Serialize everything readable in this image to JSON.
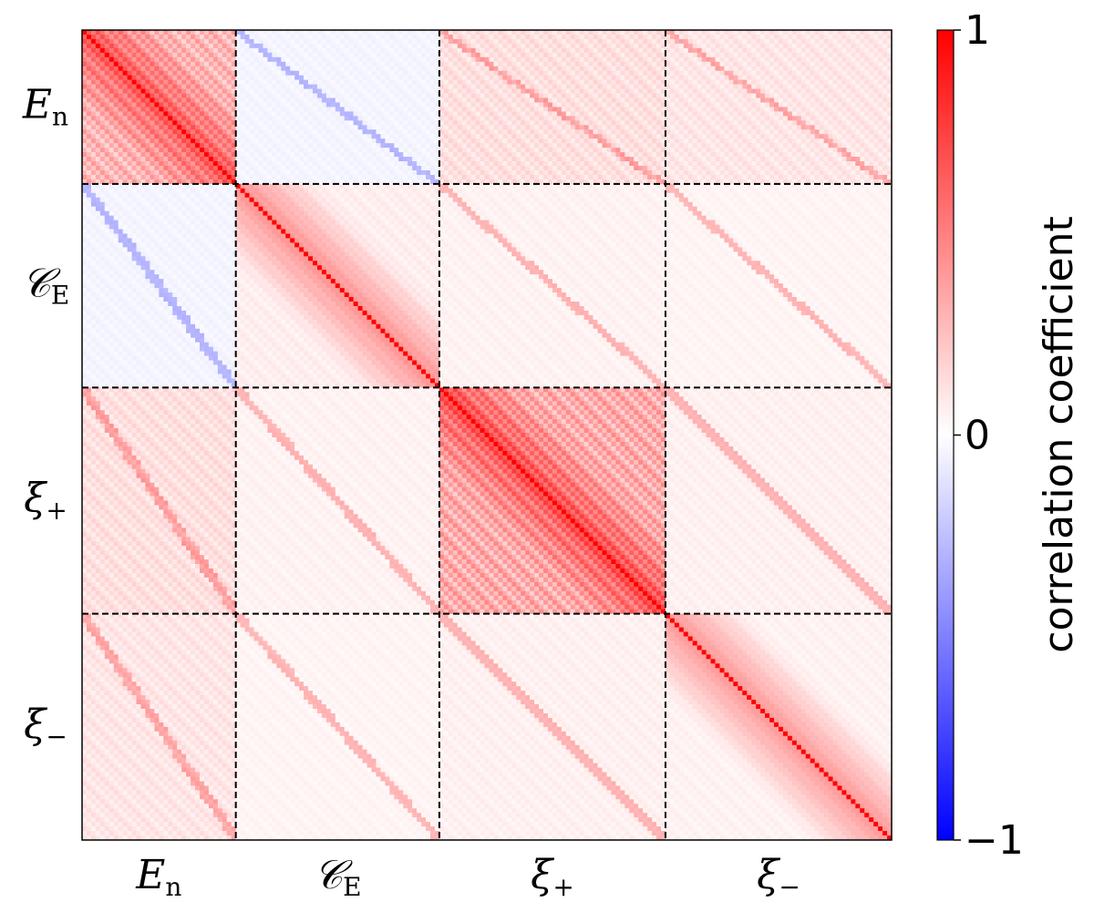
{
  "chart_data": {
    "type": "heatmap",
    "title": "",
    "blocks": [
      {
        "name": "E",
        "sub": "n",
        "size": 34
      },
      {
        "name": "𝒞",
        "sub": "E",
        "size": 45
      },
      {
        "name": "ξ",
        "sub": "+",
        "size": 50
      },
      {
        "name": "ξ",
        "sub": "−",
        "size": 50
      }
    ],
    "block_correlation": [
      [
        0.35,
        -0.05,
        0.15,
        0.12
      ],
      [
        -0.05,
        0.08,
        0.06,
        0.05
      ],
      [
        0.15,
        0.06,
        0.4,
        0.07
      ],
      [
        0.12,
        0.05,
        0.07,
        0.06
      ]
    ],
    "diagonal_value": 1.0,
    "colorbar": {
      "label": "correlation coefficient",
      "min": -1,
      "max": 1,
      "ticks": [
        {
          "value": 1,
          "label": "1"
        },
        {
          "value": 0,
          "label": "0"
        },
        {
          "value": -1,
          "label": "−1"
        }
      ],
      "colormap": "bwr",
      "colors": {
        "low": "#0000ff",
        "mid": "#ffffff",
        "high": "#ff0000"
      }
    },
    "separator_style": "dashed-black"
  }
}
